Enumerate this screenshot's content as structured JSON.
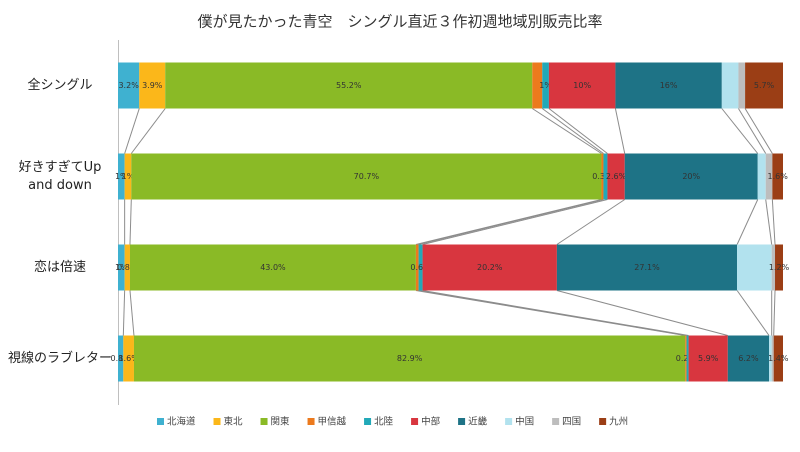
{
  "chart_data": {
    "type": "stacked-bar-100",
    "title": "僕が見たかった青空　シングル直近３作初週地域別販売比率",
    "categories": [
      "全シングル",
      "好きすぎてUp and down",
      "恋は倍速",
      "視線のラブレター"
    ],
    "xlim": [
      0,
      100
    ],
    "series": [
      {
        "name": "北海道",
        "color": "#3fb1d0",
        "values": [
          3.2,
          1.0,
          1.0,
          0.8
        ],
        "value_labels": [
          "3.2%",
          "1%",
          "1%",
          "0.8%"
        ]
      },
      {
        "name": "東北",
        "color": "#fbb71a",
        "values": [
          3.9,
          1.0,
          0.8,
          1.6
        ],
        "value_labels": [
          "3.9%",
          "1%",
          "0.8%",
          "1.6%"
        ]
      },
      {
        "name": "関東",
        "color": "#8aba26",
        "values": [
          55.2,
          70.7,
          43.0,
          82.9
        ],
        "value_labels": [
          "55.2%",
          "70.7%",
          "43.0%",
          "82.9%"
        ]
      },
      {
        "name": "甲信越",
        "color": "#ec7a1d",
        "values": [
          1.5,
          0.3,
          0.4,
          0.2
        ],
        "value_labels": [
          null,
          "0.3%",
          null,
          "0.2%"
        ]
      },
      {
        "name": "北陸",
        "color": "#22a9b8",
        "values": [
          1.0,
          0.6,
          0.6,
          0.3
        ],
        "value_labels": [
          "1%",
          null,
          "0.6%",
          null
        ]
      },
      {
        "name": "中部",
        "color": "#d8363f",
        "values": [
          10,
          2.6,
          20.2,
          5.9
        ],
        "value_labels": [
          "10%",
          "2.6%",
          "20.2%",
          "5.9%"
        ]
      },
      {
        "name": "近畿",
        "color": "#1e7386",
        "values": [
          16,
          20,
          27.1,
          6.2
        ],
        "value_labels": [
          "16%",
          "20%",
          "27.1%",
          "6.2%"
        ]
      },
      {
        "name": "中国",
        "color": "#b2e2ee",
        "values": [
          2.5,
          1.2,
          5.2,
          0.4
        ],
        "value_labels": [
          null,
          null,
          null,
          null
        ]
      },
      {
        "name": "四国",
        "color": "#bdbdbd",
        "values": [
          1.0,
          1.0,
          0.5,
          0.3
        ],
        "value_labels": [
          null,
          null,
          null,
          null
        ]
      },
      {
        "name": "九州",
        "color": "#9b3e15",
        "values": [
          5.7,
          1.6,
          1.2,
          1.4
        ],
        "value_labels": [
          "5.7%",
          "1.6%",
          "1.2%",
          "1.4%"
        ]
      }
    ]
  }
}
